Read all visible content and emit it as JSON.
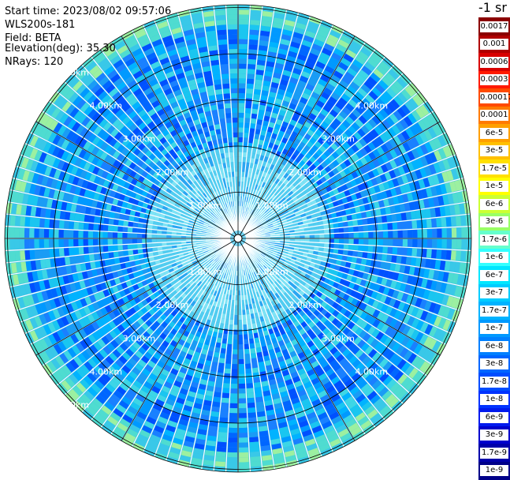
{
  "header": {
    "start_time": "Start time: 2023/08/02 09:57:06",
    "device": "WLS200s-181",
    "field": "Field: BETA",
    "elevation": "Elevation(deg): 35.30",
    "nrays": "NRays: 120"
  },
  "colorbar": {
    "title": "-1 sr",
    "labels": [
      "0.0017",
      "0.001",
      "0.0006",
      "0.0003",
      "0.00017",
      "0.0001",
      "6e-5",
      "3e-5",
      "1.7e-5",
      "1e-5",
      "6e-6",
      "3e-6",
      "1.7e-6",
      "1e-6",
      "6e-7",
      "3e-7",
      "1.7e-7",
      "1e-7",
      "6e-8",
      "3e-8",
      "1.7e-8",
      "1e-8",
      "6e-9",
      "3e-9",
      "1.7e-9",
      "1e-9"
    ],
    "colors": [
      "#8b0000",
      "#b00000",
      "#d80000",
      "#ff1a00",
      "#ff4a00",
      "#ff7a00",
      "#ff9f00",
      "#ffc000",
      "#ffe000",
      "#ffff00",
      "#ccff33",
      "#99ff66",
      "#66ffcc",
      "#33ffff",
      "#00e6ff",
      "#00ccff",
      "#00b3ff",
      "#0099ff",
      "#0080ff",
      "#0066ff",
      "#004dff",
      "#0033ff",
      "#001aee",
      "#0000cc",
      "#0000aa",
      "#000088"
    ]
  },
  "range_rings": {
    "labels": [
      "1.00km",
      "2.00km",
      "3.00km",
      "4.00km",
      "5.00km"
    ],
    "values_km": [
      1,
      2,
      3,
      4,
      5
    ]
  },
  "colors": {
    "background": "#ffffff",
    "grid": "#000000",
    "ring_label": "#ffffff"
  }
}
